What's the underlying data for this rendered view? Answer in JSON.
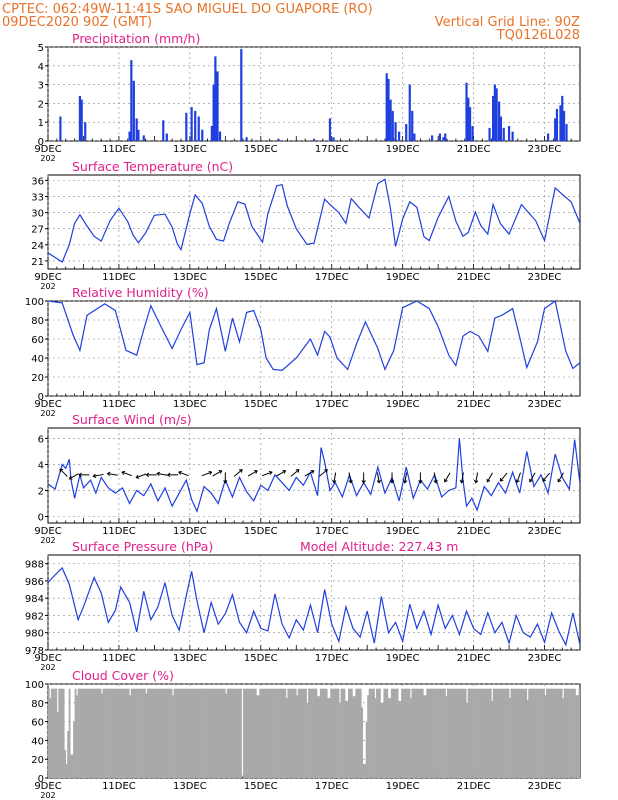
{
  "header": {
    "line1": "CPTEC:   062:49W-11:41S  SAO MIGUEL DO GUAPORE (RO)",
    "line2_left": "09DEC2020 90Z (GMT)",
    "line2_right": "Vertical Grid Line: 90Z",
    "line3_right": "TQ0126L028"
  },
  "colors": {
    "header": "#e8732a",
    "panel_title": "#e0208a",
    "series": "#1f3fdf",
    "cloud": "#a9a9a9",
    "arrows": "#000000",
    "grid": "#888888"
  },
  "x_ticks": [
    "9DEC",
    "11DEC",
    "13DEC",
    "15DEC",
    "17DEC",
    "19DEC",
    "21DEC",
    "23DEC"
  ],
  "x_tick_days": [
    9,
    11,
    13,
    15,
    17,
    19,
    21,
    23
  ],
  "x_year_fragment": "202",
  "x_range_days": [
    9,
    24
  ],
  "chart_data": [
    {
      "id": "precip",
      "type": "bar",
      "title": "Precipitation (mm/h)",
      "ylim": [
        0,
        5
      ],
      "yticks": [
        "0",
        "1",
        "2",
        "3",
        "4",
        "5"
      ],
      "points": [
        [
          9.35,
          1.3
        ],
        [
          9.9,
          2.4
        ],
        [
          9.95,
          2.2
        ],
        [
          10.05,
          1.0
        ],
        [
          11.3,
          0.5
        ],
        [
          11.35,
          4.3
        ],
        [
          11.42,
          3.2
        ],
        [
          11.5,
          1.2
        ],
        [
          11.55,
          0.6
        ],
        [
          11.7,
          0.3
        ],
        [
          12.25,
          1.1
        ],
        [
          12.35,
          0.4
        ],
        [
          12.9,
          1.5
        ],
        [
          13.05,
          1.8
        ],
        [
          13.15,
          1.6
        ],
        [
          13.25,
          1.3
        ],
        [
          13.35,
          0.6
        ],
        [
          13.62,
          0.8
        ],
        [
          13.67,
          3.0
        ],
        [
          13.72,
          4.5
        ],
        [
          13.78,
          3.7
        ],
        [
          13.85,
          0.5
        ],
        [
          14.45,
          4.9
        ],
        [
          14.6,
          0.2
        ],
        [
          15.5,
          0.1
        ],
        [
          16.5,
          0.1
        ],
        [
          16.95,
          1.2
        ],
        [
          17.05,
          0.2
        ],
        [
          18.55,
          3.6
        ],
        [
          18.6,
          3.3
        ],
        [
          18.66,
          2.2
        ],
        [
          18.72,
          1.6
        ],
        [
          18.8,
          1.0
        ],
        [
          18.9,
          0.5
        ],
        [
          19.1,
          0.9
        ],
        [
          19.2,
          3.0
        ],
        [
          19.27,
          1.6
        ],
        [
          19.33,
          0.4
        ],
        [
          19.83,
          0.3
        ],
        [
          20.05,
          0.4
        ],
        [
          20.15,
          0.2
        ],
        [
          20.2,
          0.4
        ],
        [
          20.8,
          3.1
        ],
        [
          20.85,
          2.3
        ],
        [
          20.9,
          1.8
        ],
        [
          20.97,
          0.8
        ],
        [
          21.45,
          0.7
        ],
        [
          21.55,
          2.4
        ],
        [
          21.6,
          3.0
        ],
        [
          21.65,
          2.8
        ],
        [
          21.72,
          2.1
        ],
        [
          21.77,
          1.3
        ],
        [
          21.85,
          0.7
        ],
        [
          22.0,
          0.8
        ],
        [
          22.1,
          0.5
        ],
        [
          23.1,
          0.4
        ],
        [
          23.3,
          1.2
        ],
        [
          23.35,
          1.7
        ],
        [
          23.45,
          1.9
        ],
        [
          23.5,
          2.4
        ],
        [
          23.55,
          1.6
        ],
        [
          23.62,
          0.9
        ]
      ]
    },
    {
      "id": "temp",
      "type": "line",
      "title": "Surface Temperature (nC)",
      "ylim": [
        19.5,
        37
      ],
      "yticks": [
        21,
        24,
        27,
        30,
        33,
        36
      ],
      "x": [
        9.0,
        9.4,
        9.6,
        9.75,
        9.9,
        10.1,
        10.3,
        10.5,
        10.75,
        11.0,
        11.25,
        11.4,
        11.55,
        11.75,
        12.0,
        12.3,
        12.5,
        12.65,
        12.75,
        13.0,
        13.15,
        13.35,
        13.55,
        13.75,
        13.95,
        14.1,
        14.35,
        14.55,
        14.75,
        15.05,
        15.2,
        15.45,
        15.6,
        15.75,
        16.0,
        16.3,
        16.5,
        16.65,
        16.8,
        17.0,
        17.2,
        17.4,
        17.55,
        17.75,
        18.05,
        18.3,
        18.5,
        18.65,
        18.8,
        19.0,
        19.2,
        19.4,
        19.6,
        19.75,
        20.0,
        20.3,
        20.5,
        20.7,
        20.85,
        21.05,
        21.2,
        21.4,
        21.55,
        21.75,
        22.0,
        22.35,
        22.55,
        22.75,
        23.0,
        23.3,
        23.5,
        23.75,
        24.0
      ],
      "y": [
        22.5,
        20.8,
        24.0,
        28.0,
        29.6,
        27.5,
        25.6,
        24.7,
        28.5,
        30.8,
        28.3,
        25.8,
        24.4,
        26.2,
        29.5,
        29.7,
        27.3,
        24.1,
        23.1,
        29.8,
        33.3,
        31.7,
        27.4,
        25.0,
        24.7,
        27.8,
        32.0,
        31.6,
        27.4,
        24.5,
        29.8,
        35.0,
        35.2,
        31.2,
        27.0,
        24.1,
        24.3,
        28.4,
        32.5,
        31.2,
        30.0,
        28.0,
        32.6,
        31.1,
        29.0,
        35.4,
        36.2,
        31.0,
        23.7,
        28.8,
        32.0,
        31.0,
        25.5,
        24.8,
        29.1,
        33.0,
        28.4,
        25.6,
        26.3,
        30.1,
        27.6,
        26.0,
        31.5,
        28.0,
        26.0,
        31.5,
        30.0,
        28.5,
        24.8,
        34.6,
        33.4,
        32.0,
        28.0
      ]
    },
    {
      "id": "rh",
      "type": "line",
      "title": "Relative Humidity (%)",
      "ylim": [
        0,
        100
      ],
      "yticks": [
        0,
        20,
        40,
        60,
        80,
        100
      ],
      "x": [
        9.0,
        9.4,
        9.7,
        9.9,
        10.1,
        10.6,
        10.9,
        11.2,
        11.5,
        11.7,
        11.9,
        12.2,
        12.5,
        12.75,
        13.0,
        13.2,
        13.4,
        13.55,
        13.75,
        14.0,
        14.2,
        14.4,
        14.6,
        14.8,
        15.0,
        15.15,
        15.35,
        15.6,
        16.0,
        16.4,
        16.6,
        16.8,
        16.95,
        17.15,
        17.45,
        17.7,
        17.95,
        18.3,
        18.5,
        18.75,
        19.0,
        19.4,
        19.75,
        20.0,
        20.3,
        20.5,
        20.7,
        20.9,
        21.15,
        21.4,
        21.6,
        21.8,
        22.1,
        22.3,
        22.5,
        22.8,
        23.0,
        23.3,
        23.6,
        23.8,
        24.0
      ],
      "y": [
        100,
        98,
        65,
        48,
        85,
        97,
        90,
        48,
        43,
        70,
        95,
        72,
        50,
        70,
        88,
        33,
        35,
        70,
        92,
        47,
        82,
        57,
        88,
        90,
        70,
        40,
        28,
        27,
        40,
        60,
        43,
        68,
        62,
        40,
        28,
        55,
        78,
        50,
        28,
        48,
        93,
        100,
        92,
        73,
        43,
        32,
        63,
        68,
        63,
        47,
        82,
        85,
        92,
        62,
        30,
        57,
        92,
        100,
        47,
        29,
        35
      ]
    },
    {
      "id": "wind",
      "type": "line",
      "title": "Surface Wind (m/s)",
      "ylim": [
        -0.5,
        6.8
      ],
      "yticks": [
        0,
        2,
        4,
        6
      ],
      "x": [
        9.0,
        9.2,
        9.4,
        9.5,
        9.6,
        9.65,
        9.75,
        9.9,
        10.0,
        10.2,
        10.35,
        10.5,
        10.7,
        10.9,
        11.1,
        11.3,
        11.5,
        11.7,
        11.9,
        12.1,
        12.3,
        12.5,
        12.7,
        12.9,
        13.05,
        13.2,
        13.4,
        13.6,
        13.8,
        14.0,
        14.2,
        14.4,
        14.6,
        14.8,
        15.0,
        15.2,
        15.4,
        15.6,
        15.8,
        16.0,
        16.2,
        16.4,
        16.6,
        16.7,
        16.8,
        16.95,
        17.1,
        17.3,
        17.5,
        17.7,
        17.9,
        18.1,
        18.3,
        18.5,
        18.7,
        18.9,
        19.1,
        19.3,
        19.5,
        19.7,
        19.9,
        20.1,
        20.3,
        20.5,
        20.6,
        20.7,
        20.8,
        20.95,
        21.1,
        21.3,
        21.5,
        21.7,
        21.9,
        22.1,
        22.3,
        22.5,
        22.7,
        22.9,
        23.1,
        23.3,
        23.5,
        23.7,
        23.85,
        24.0
      ],
      "y": [
        2.5,
        2.1,
        4.0,
        3.7,
        4.4,
        2.8,
        1.4,
        3.2,
        2.2,
        2.8,
        1.8,
        3.0,
        2.2,
        1.8,
        2.2,
        1.0,
        2.0,
        1.6,
        2.5,
        1.2,
        2.2,
        0.8,
        1.8,
        2.8,
        1.3,
        0.4,
        2.3,
        1.8,
        1.0,
        2.8,
        1.5,
        3.0,
        1.9,
        1.2,
        2.4,
        2.0,
        3.2,
        2.6,
        2.0,
        3.0,
        2.4,
        3.4,
        1.6,
        5.3,
        4.2,
        2.0,
        2.6,
        1.5,
        3.2,
        1.6,
        2.6,
        1.7,
        3.8,
        1.8,
        3.0,
        1.2,
        3.8,
        1.4,
        2.8,
        2.1,
        3.2,
        1.5,
        2.0,
        2.2,
        6.0,
        2.8,
        0.8,
        1.4,
        0.5,
        2.3,
        1.6,
        2.6,
        1.8,
        3.4,
        1.8,
        5.0,
        2.3,
        3.2,
        1.8,
        4.8,
        3.0,
        2.1,
        5.9,
        2.5
      ]
    },
    {
      "id": "pres",
      "type": "line",
      "title": "Surface Pressure (hPa)",
      "annotation": "Model Altitude: 227.43 m",
      "ylim": [
        978,
        989
      ],
      "yticks": [
        978,
        980,
        982,
        984,
        986,
        988
      ],
      "x": [
        9.0,
        9.2,
        9.4,
        9.6,
        9.85,
        10.0,
        10.3,
        10.5,
        10.7,
        10.9,
        11.05,
        11.3,
        11.5,
        11.7,
        11.9,
        12.1,
        12.3,
        12.5,
        12.7,
        12.9,
        13.05,
        13.2,
        13.4,
        13.6,
        13.8,
        14.0,
        14.2,
        14.4,
        14.6,
        14.8,
        15.0,
        15.2,
        15.4,
        15.6,
        15.8,
        16.0,
        16.2,
        16.4,
        16.6,
        16.8,
        17.0,
        17.2,
        17.4,
        17.6,
        17.8,
        18.0,
        18.2,
        18.4,
        18.6,
        18.8,
        19.0,
        19.2,
        19.4,
        19.6,
        19.8,
        20.0,
        20.2,
        20.4,
        20.6,
        20.8,
        21.0,
        21.2,
        21.4,
        21.6,
        21.8,
        22.0,
        22.2,
        22.4,
        22.6,
        22.8,
        23.0,
        23.2,
        23.4,
        23.6,
        23.8,
        24.0
      ],
      "y": [
        985.8,
        986.7,
        987.5,
        985.6,
        981.5,
        983.0,
        986.4,
        984.6,
        981.2,
        982.6,
        985.3,
        983.5,
        980.1,
        984.8,
        981.5,
        983.0,
        985.8,
        982.0,
        980.3,
        984.3,
        987.1,
        983.7,
        980.0,
        983.5,
        981.0,
        982.2,
        984.4,
        981.2,
        980.0,
        982.5,
        980.5,
        980.2,
        984.5,
        981.0,
        979.4,
        981.5,
        980.3,
        983.2,
        980.0,
        985.0,
        981.0,
        979.0,
        983.0,
        980.5,
        979.5,
        982.5,
        978.8,
        984.2,
        980.0,
        981.2,
        979.0,
        983.3,
        980.5,
        982.5,
        979.8,
        983.2,
        980.5,
        982.0,
        979.8,
        982.5,
        980.5,
        979.8,
        982.3,
        980.0,
        981.2,
        978.8,
        982.0,
        980.0,
        979.5,
        981.0,
        978.9,
        982.3,
        980.2,
        978.6,
        982.3,
        978.6
      ]
    },
    {
      "id": "cloud",
      "type": "bar",
      "title": "Cloud Cover (%)",
      "ylim": [
        0,
        100
      ],
      "yticks": [
        0,
        20,
        40,
        60,
        80,
        100
      ],
      "base": 95,
      "dips": [
        [
          9.05,
          85
        ],
        [
          9.25,
          70
        ],
        [
          9.45,
          30
        ],
        [
          9.5,
          15
        ],
        [
          9.55,
          50
        ],
        [
          9.65,
          25
        ],
        [
          9.7,
          60
        ],
        [
          9.8,
          88
        ],
        [
          10.5,
          90
        ],
        [
          11.3,
          88
        ],
        [
          11.75,
          90
        ],
        [
          12.5,
          88
        ],
        [
          14.0,
          90
        ],
        [
          14.45,
          0
        ],
        [
          14.9,
          88
        ],
        [
          15.7,
          85
        ],
        [
          16.0,
          88
        ],
        [
          16.3,
          80
        ],
        [
          16.6,
          87
        ],
        [
          16.9,
          85
        ],
        [
          17.2,
          80
        ],
        [
          17.4,
          82
        ],
        [
          17.6,
          87
        ],
        [
          17.85,
          75
        ],
        [
          17.9,
          15
        ],
        [
          17.95,
          60
        ],
        [
          18.0,
          88
        ],
        [
          18.2,
          85
        ],
        [
          18.4,
          80
        ],
        [
          18.6,
          85
        ],
        [
          18.9,
          82
        ],
        [
          19.2,
          85
        ],
        [
          19.6,
          88
        ],
        [
          20.2,
          87
        ],
        [
          20.8,
          80
        ],
        [
          21.5,
          82
        ],
        [
          22.0,
          85
        ],
        [
          22.5,
          83
        ],
        [
          23.0,
          88
        ],
        [
          23.5,
          85
        ],
        [
          23.9,
          88
        ]
      ]
    }
  ]
}
